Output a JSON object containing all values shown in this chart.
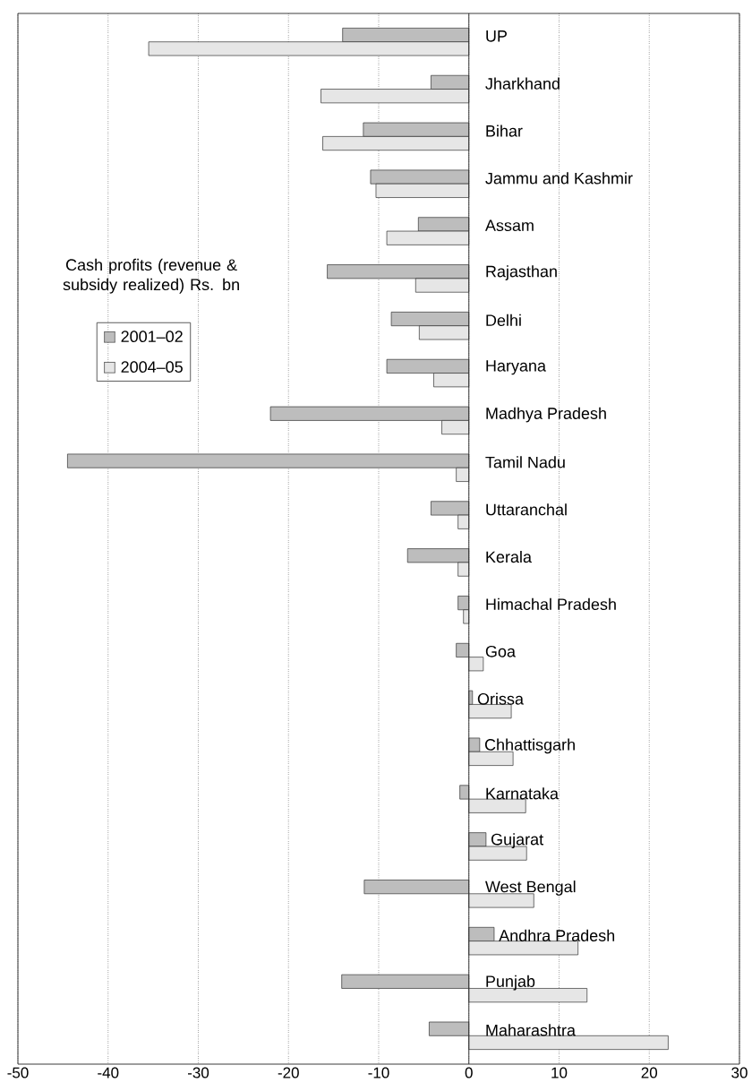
{
  "chart_data": {
    "type": "bar",
    "orientation": "horizontal",
    "title": "Cash profits (revenue & subsidy realized) Rs. bn",
    "categories": [
      "UP",
      "Jharkhand",
      "Bihar",
      "Jammu and Kashmir",
      "Assam",
      "Rajasthan",
      "Delhi",
      "Haryana",
      "Madhya Pradesh",
      "Tamil Nadu",
      "Uttaranchal",
      "Kerala",
      "Himachal Pradesh",
      "Goa",
      "Orissa",
      "Chhattisgarh",
      "Karnataka",
      "Gujarat",
      "West Bengal",
      "Andhra Pradesh",
      "Punjab",
      "Maharashtra"
    ],
    "series": [
      {
        "name": "2001–02",
        "color": "#bdbdbd",
        "values": [
          -14.0,
          -4.2,
          -11.7,
          -10.9,
          -5.6,
          -15.7,
          -8.6,
          -9.1,
          -22.0,
          -44.5,
          -4.2,
          -6.8,
          -1.2,
          -1.4,
          0.4,
          1.2,
          -1.0,
          1.9,
          -11.6,
          2.8,
          -14.1,
          -4.4
        ]
      },
      {
        "name": "2004–05",
        "color": "#e6e6e6",
        "values": [
          -35.5,
          -16.4,
          -16.2,
          -10.3,
          -9.1,
          -5.9,
          -5.5,
          -3.9,
          -3.0,
          -1.4,
          -1.2,
          -1.2,
          -0.6,
          1.6,
          4.7,
          4.9,
          6.3,
          6.4,
          7.2,
          12.1,
          13.1,
          22.1
        ]
      }
    ],
    "xlim": [
      -50,
      30
    ],
    "xticks": [
      -50,
      -40,
      -30,
      -20,
      -10,
      0,
      10,
      20,
      30
    ],
    "grid": "x",
    "legend": "left"
  }
}
